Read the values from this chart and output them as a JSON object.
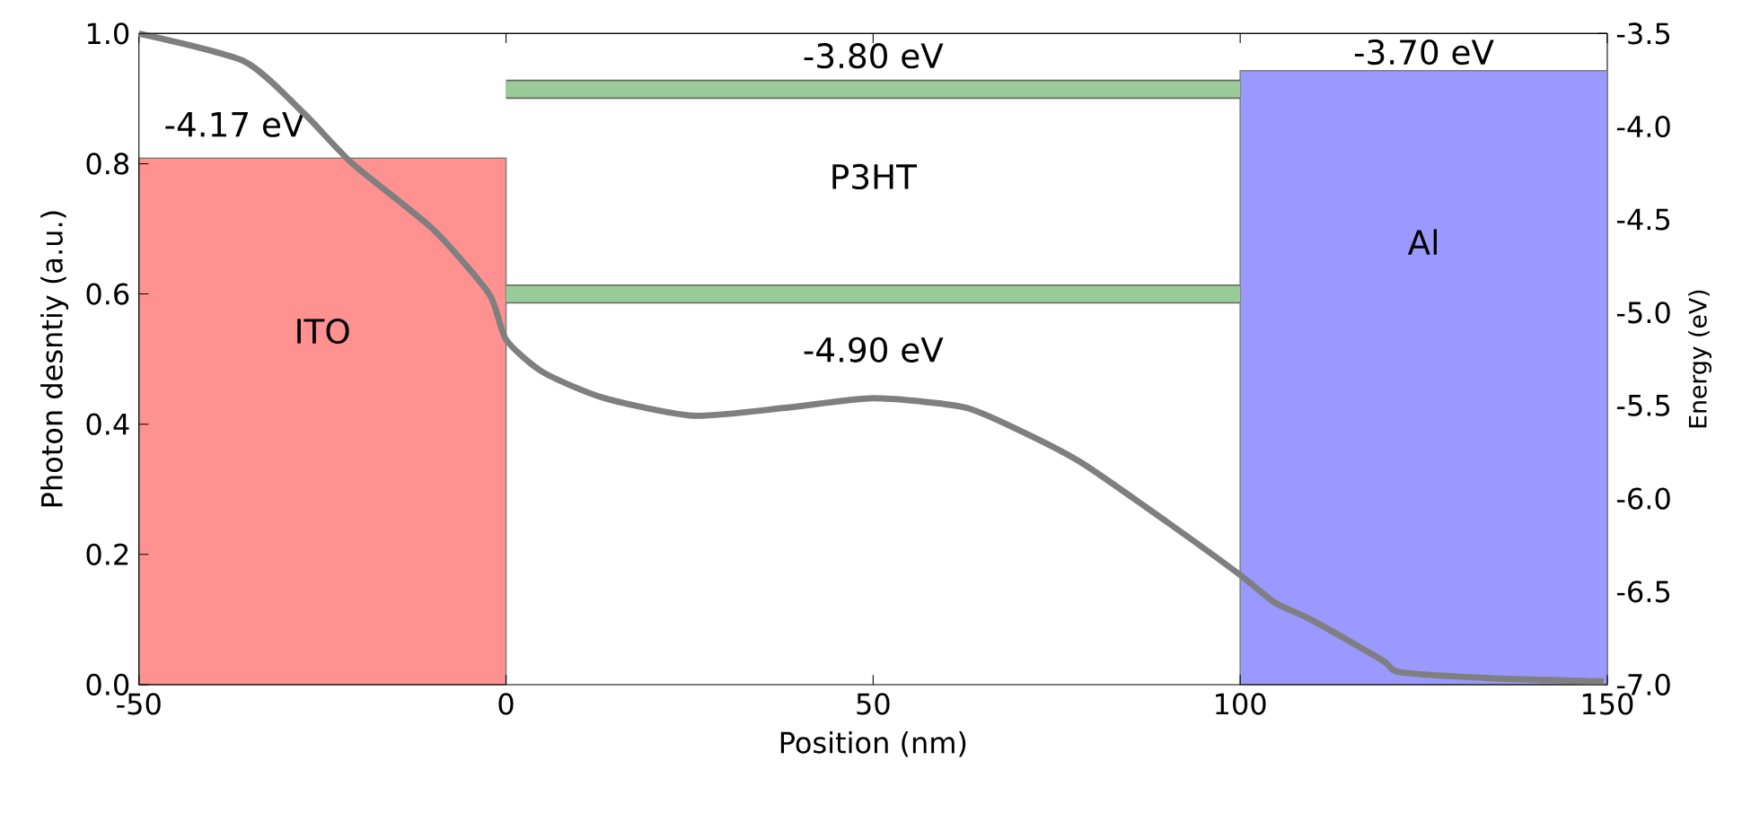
{
  "chart_data": {
    "type": "line",
    "xlabel": "Position (nm)",
    "ylabel": "Photon desntiy (a.u.)",
    "y2label": "Energy (eV)",
    "xlim": [
      -50,
      150
    ],
    "xticks": [
      -50,
      0,
      50,
      100,
      150
    ],
    "ylim": [
      0,
      1
    ],
    "yticks": [
      {
        "value": 0,
        "label": "0.0"
      },
      0.2,
      0.4,
      0.6,
      0.8,
      {
        "value": 1,
        "label": "1.0"
      }
    ],
    "y2lim": [
      -7,
      -3.5
    ],
    "y2ticks": [
      -3.5,
      {
        "value": -4,
        "label": "-4.0"
      },
      -4.5,
      {
        "value": -5,
        "label": "-5.0"
      },
      -5.5,
      {
        "value": -6,
        "label": "-6.0"
      },
      -6.5,
      {
        "value": -7,
        "label": "-7.0"
      }
    ],
    "series": [
      {
        "type": "area",
        "axis": "y2",
        "color": "#ff9191",
        "x": [
          -50,
          -50,
          0,
          0
        ],
        "values": [
          -7,
          -4.17,
          -4.17,
          -7
        ]
      },
      {
        "type": "area",
        "axis": "y2",
        "color": "#9999ff",
        "x": [
          100,
          100,
          150,
          150
        ],
        "values": [
          -7,
          -3.7,
          -3.7,
          -7
        ]
      },
      {
        "type": "line",
        "axis": "y2",
        "color": "#99cc99",
        "x": [
          0,
          100
        ],
        "values": [
          -3.8,
          -3.8
        ]
      },
      {
        "type": "line",
        "axis": "y2",
        "color": "#99cc99",
        "x": [
          0,
          100
        ],
        "values": [
          -4.9,
          -4.9
        ]
      },
      {
        "color": "#7f7f7f",
        "x": [
          -50,
          -35.6,
          -27.5,
          -20.9,
          -10,
          -2.3,
          0,
          5,
          13.4,
          25.6,
          38,
          50.1,
          62.4,
          70,
          78.5,
          90,
          99.8,
          104.7,
          109.6,
          119.4,
          121.8,
          134,
          149.5
        ],
        "values": [
          1.0,
          0.957,
          0.877,
          0.8,
          0.7,
          0.6,
          0.53,
          0.48,
          0.44,
          0.413,
          0.425,
          0.44,
          0.426,
          0.39,
          0.34,
          0.25,
          0.17,
          0.126,
          0.1,
          0.037,
          0.019,
          0.01,
          0.005
        ]
      }
    ],
    "annotations": [
      "-4.17 eV",
      "ITO",
      "-3.80 eV",
      "P3HT",
      "-4.90 eV",
      "-3.70 eV",
      "Al"
    ]
  }
}
